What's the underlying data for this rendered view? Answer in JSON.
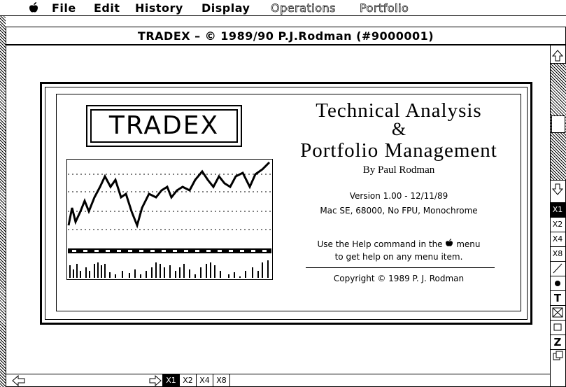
{
  "menu_bar": {
    "items": [
      "File",
      "Edit",
      "History",
      "Display",
      "Operations",
      "Portfolio"
    ],
    "disabled": [
      false,
      false,
      false,
      false,
      true,
      true
    ]
  },
  "window": {
    "title": "TRADEX  –  © 1989/90 P.J.Rodman (#9000001)"
  },
  "splash": {
    "logo": "TRADEX",
    "heading": [
      "Technical Analysis",
      "&",
      "Portfolio Management"
    ],
    "author": "By  Paul Rodman",
    "version": "Version 1.00 - 12/11/89",
    "system": "Mac SE, 68000, No FPU, Monochrome",
    "help": [
      "Use the Help command in the",
      "menu",
      "to get help on any menu item."
    ],
    "copyright": "Copyright © 1989  P. J. Rodman"
  },
  "toolbar": {
    "zoom": [
      "X1",
      "X2",
      "X4",
      "X8"
    ],
    "tools": [
      "T",
      "Z"
    ]
  },
  "bottom_bar": {
    "zoom": [
      "X1",
      "X2",
      "X4",
      "X8"
    ]
  }
}
